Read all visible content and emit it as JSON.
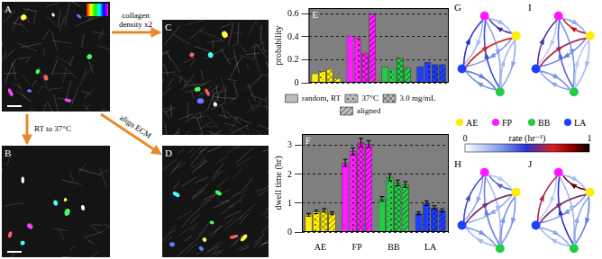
{
  "images": [
    {
      "panel": "A"
    },
    {
      "panel": "B"
    },
    {
      "panel": "C"
    },
    {
      "panel": "D"
    }
  ],
  "arrows": [
    {
      "from": "A",
      "to": "C",
      "label": "collagen density x2"
    },
    {
      "from": "A",
      "to": "B",
      "label": "RT to 37°C"
    },
    {
      "from": "A",
      "to": "D",
      "label": "align ECM"
    }
  ],
  "chart_data": [
    {
      "panel": "E",
      "type": "bar",
      "categories": [
        "AE",
        "FP",
        "BB",
        "LA"
      ],
      "y_label": "probability",
      "ylim": [
        0,
        0.65
      ],
      "yticks": [
        0,
        0.2,
        0.4,
        0.6
      ],
      "grid": true,
      "legend": "bottom",
      "tick_labels": "y",
      "series": [
        {
          "name": "random, RT",
          "colors": [
            "#ffee00",
            "#ff1aff",
            "#22cc44",
            "#1f3fff"
          ],
          "values": [
            0.08,
            0.41,
            0.14,
            0.14
          ]
        },
        {
          "name": "37°C",
          "colors": [
            "#ffee00",
            "#ff1aff",
            "#22cc44",
            "#1f3fff"
          ],
          "values": [
            0.1,
            0.39,
            0.12,
            0.18
          ]
        },
        {
          "name": "3.0 mg/mL",
          "colors": [
            "#ffee00",
            "#ff1aff",
            "#22cc44",
            "#1f3fff"
          ],
          "values": [
            0.12,
            0.26,
            0.22,
            0.16
          ]
        },
        {
          "name": "aligned",
          "colors": [
            "#ffee00",
            "#ff1aff",
            "#22cc44",
            "#1f3fff"
          ],
          "values": [
            0.04,
            0.6,
            0.13,
            0.16
          ]
        }
      ]
    },
    {
      "panel": "F",
      "type": "bar",
      "categories": [
        "AE",
        "FP",
        "BB",
        "LA"
      ],
      "y_label": "dwell time (hr)",
      "ylim": [
        0,
        3.4
      ],
      "yticks": [
        0,
        1,
        2,
        3
      ],
      "grid": true,
      "series": [
        {
          "name": "random, RT",
          "colors": [
            "#ffee00",
            "#ff1aff",
            "#22cc44",
            "#1f3fff"
          ],
          "values": [
            0.6,
            2.4,
            1.15,
            0.65
          ],
          "errors": [
            0.05,
            0.12,
            0.08,
            0.05
          ]
        },
        {
          "name": "37°C",
          "colors": [
            "#ffee00",
            "#ff1aff",
            "#22cc44",
            "#1f3fff"
          ],
          "values": [
            0.7,
            2.8,
            1.9,
            1.0
          ],
          "errors": [
            0.06,
            0.12,
            0.12,
            0.08
          ]
        },
        {
          "name": "3.0 mg/mL",
          "colors": [
            "#ffee00",
            "#ff1aff",
            "#22cc44",
            "#1f3fff"
          ],
          "values": [
            0.75,
            3.1,
            1.7,
            0.85
          ],
          "errors": [
            0.06,
            0.15,
            0.1,
            0.06
          ]
        },
        {
          "name": "aligned",
          "colors": [
            "#ffee00",
            "#ff1aff",
            "#22cc44",
            "#1f3fff"
          ],
          "values": [
            0.65,
            3.05,
            1.65,
            0.75
          ],
          "errors": [
            0.05,
            0.12,
            0.1,
            0.05
          ]
        }
      ]
    }
  ],
  "states": [
    {
      "name": "AE",
      "color": "#ffee00"
    },
    {
      "name": "FP",
      "color": "#ff1aff"
    },
    {
      "name": "BB",
      "color": "#22cc44"
    },
    {
      "name": "LA",
      "color": "#1f3fff"
    }
  ],
  "colorbar": {
    "label": "rate (hr⁻¹)",
    "range": [
      0,
      1
    ],
    "ticks": [
      0,
      1
    ]
  },
  "networks": [
    {
      "panel": "G",
      "rates": [
        [
          null,
          0.55,
          0.25,
          0.3
        ],
        [
          0.2,
          null,
          0.25,
          0.2
        ],
        [
          0.2,
          0.45,
          null,
          0.3
        ],
        [
          0.7,
          0.5,
          0.35,
          null
        ]
      ]
    },
    {
      "panel": "I",
      "rates": [
        [
          null,
          0.75,
          0.2,
          0.35
        ],
        [
          0.25,
          null,
          0.3,
          0.15
        ],
        [
          0.15,
          0.4,
          null,
          0.25
        ],
        [
          0.65,
          0.55,
          0.3,
          null
        ]
      ]
    },
    {
      "panel": "H",
      "rates": [
        [
          null,
          0.4,
          0.3,
          0.25
        ],
        [
          0.15,
          null,
          0.2,
          0.25
        ],
        [
          0.3,
          0.35,
          null,
          0.2
        ],
        [
          0.6,
          0.45,
          0.3,
          null
        ]
      ]
    },
    {
      "panel": "J",
      "rates": [
        [
          null,
          0.9,
          0.35,
          0.3
        ],
        [
          0.2,
          null,
          0.2,
          0.15
        ],
        [
          0.25,
          0.5,
          null,
          0.2
        ],
        [
          0.6,
          0.65,
          0.25,
          null
        ]
      ]
    }
  ]
}
